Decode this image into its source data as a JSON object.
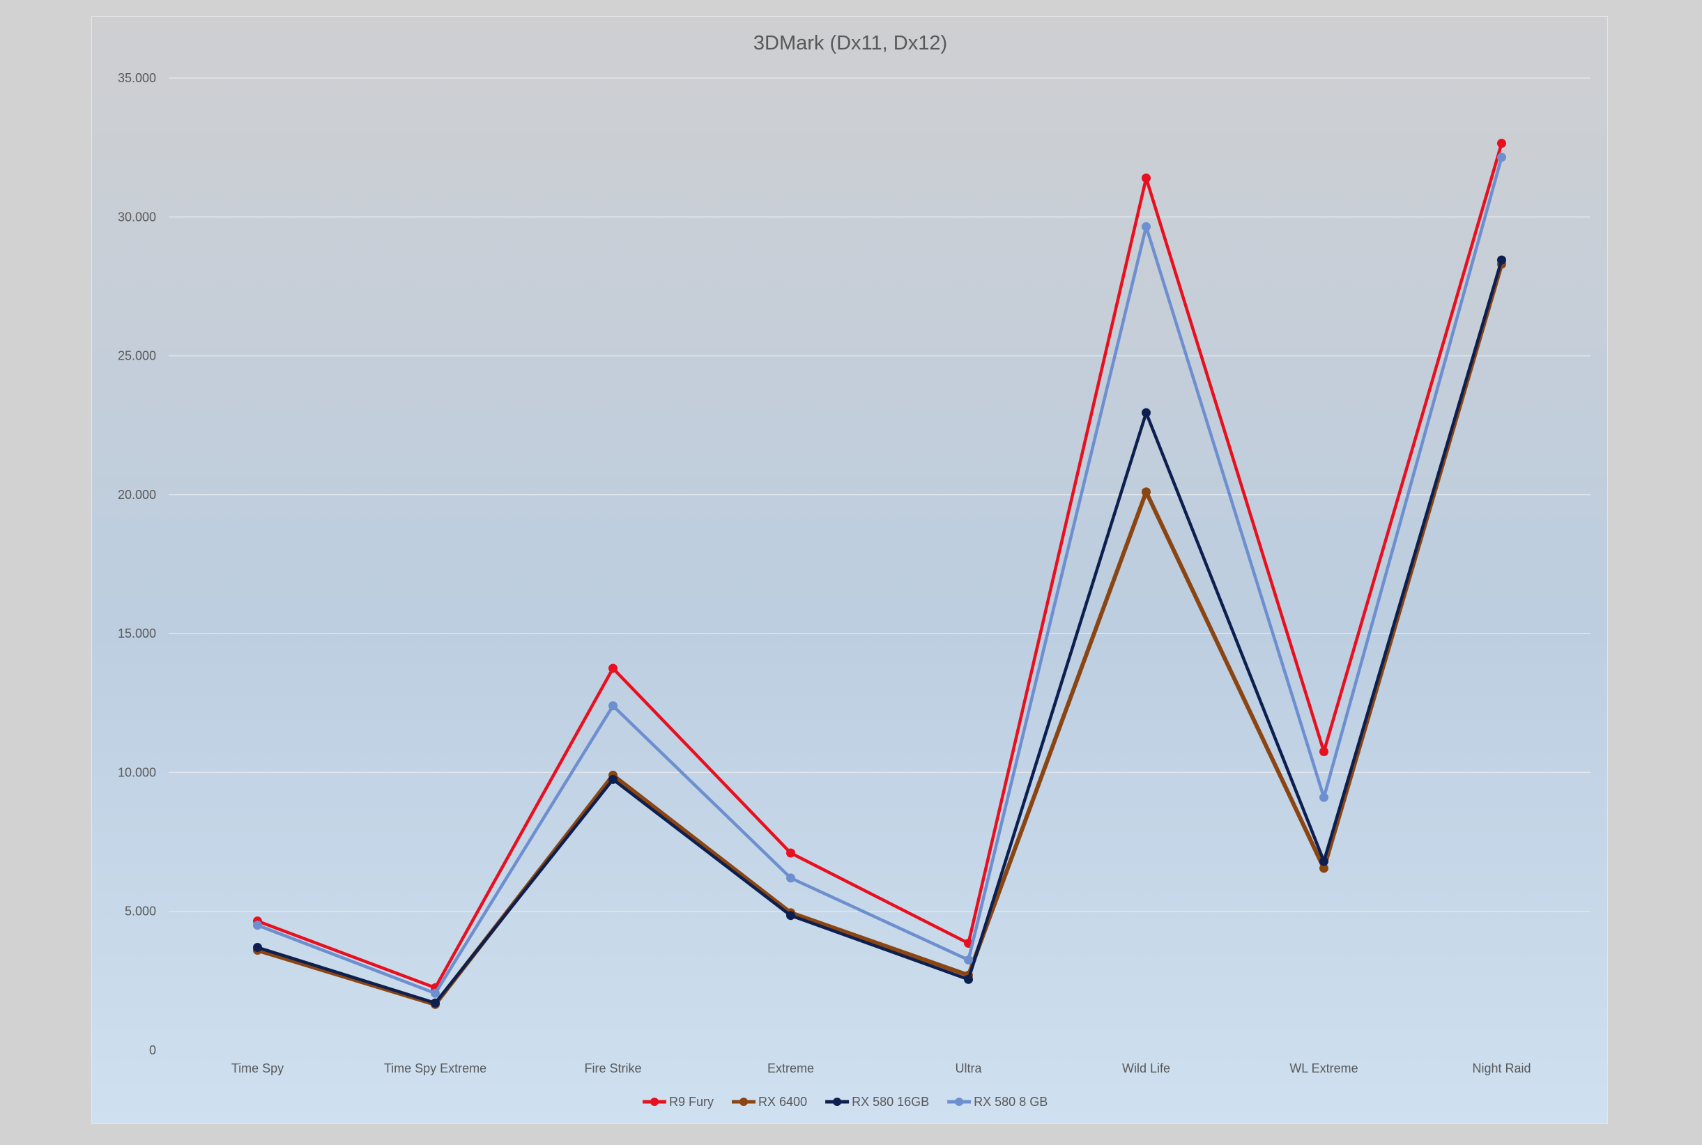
{
  "chart_data": {
    "type": "line",
    "title": "3DMark (Dx11, Dx12)",
    "categories": [
      "Time Spy",
      "Time Spy Extreme",
      "Fire Strike",
      "Extreme",
      "Ultra",
      "Wild Life",
      "WL Extreme",
      "Night Raid"
    ],
    "y_ticks": [
      "0",
      "5.000",
      "10.000",
      "15.000",
      "20.000",
      "25.000",
      "30.000",
      "35.000"
    ],
    "ylim": [
      0,
      35000
    ],
    "grid": true,
    "legend_position": "bottom",
    "series": [
      {
        "name": "R9 Fury",
        "color": "#e8101e",
        "values": [
          4650,
          2250,
          13750,
          7100,
          3850,
          31400,
          10750,
          32650
        ]
      },
      {
        "name": "RX 6400",
        "color": "#8b4513",
        "values": [
          3600,
          1650,
          9900,
          4950,
          2700,
          20100,
          6550,
          28300
        ]
      },
      {
        "name": "RX 580 16GB",
        "color": "#0d1f4f",
        "values": [
          3700,
          1700,
          9750,
          4850,
          2550,
          22950,
          6800,
          28450
        ]
      },
      {
        "name": "RX 580 8 GB",
        "color": "#6e8fcf",
        "values": [
          4500,
          2050,
          12400,
          6200,
          3250,
          29650,
          9100,
          32150
        ]
      }
    ]
  }
}
